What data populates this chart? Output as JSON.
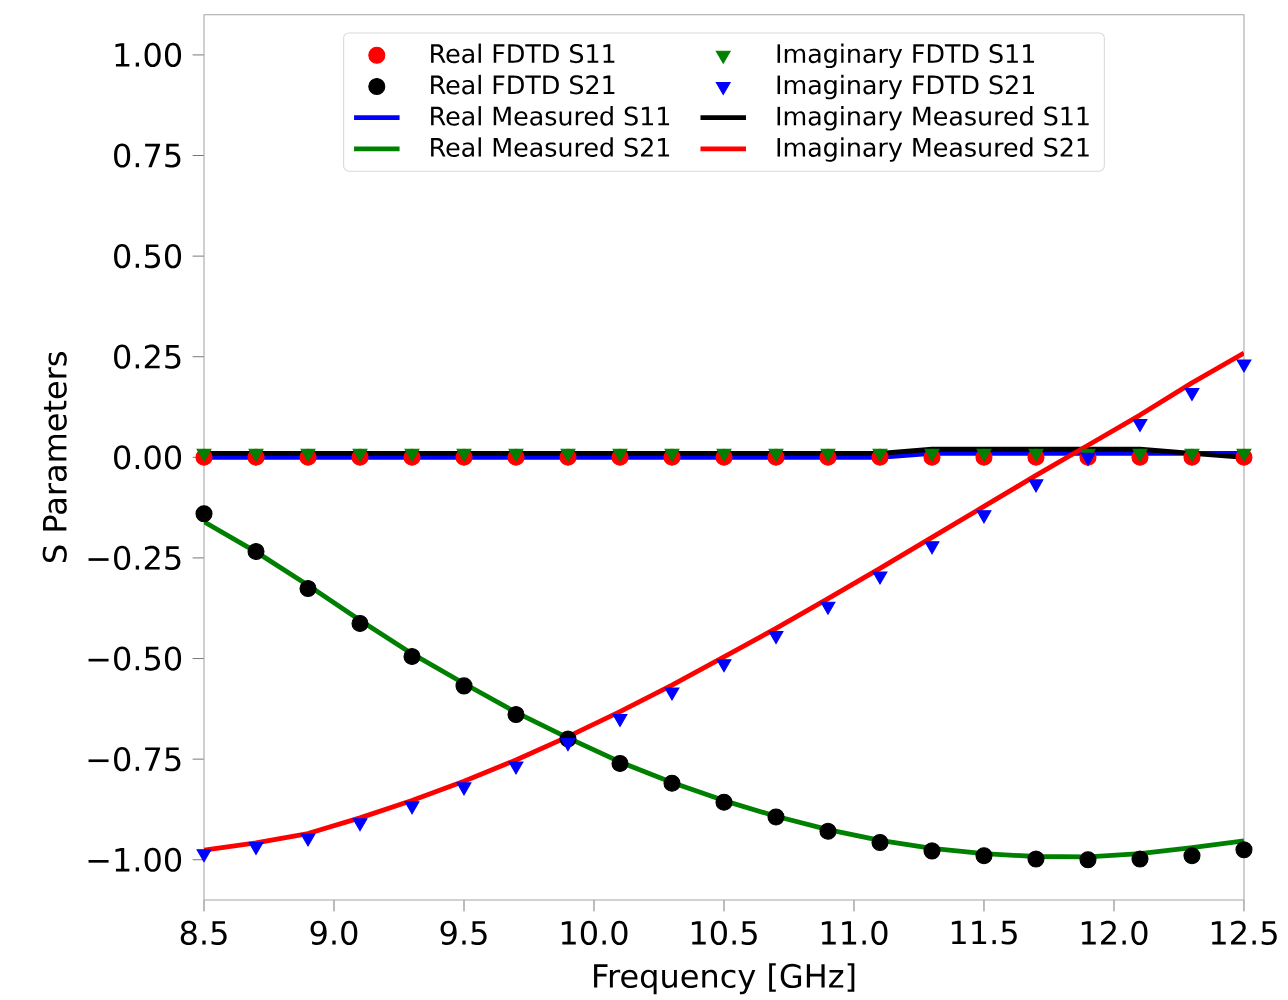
{
  "chart_data": {
    "type": "line",
    "xlabel": "Frequency [GHz]",
    "ylabel": "S Parameters",
    "xlim": [
      8.5,
      12.5
    ],
    "ylim": [
      -1.1,
      1.1
    ],
    "xticks": [
      8.5,
      {
        "value": 9,
        "label": "9.0"
      },
      9.5,
      {
        "value": 10,
        "label": "10.0"
      },
      10.5,
      {
        "value": 11,
        "label": "11.0"
      },
      11.5,
      {
        "value": 12,
        "label": "12.0"
      },
      12.5
    ],
    "yticks": [
      {
        "value": -1,
        "label": "−1.00"
      },
      {
        "value": -0.75,
        "label": "−0.75"
      },
      {
        "value": -0.5,
        "label": "−0.50"
      },
      {
        "value": -0.25,
        "label": "−0.25"
      },
      {
        "value": 0,
        "label": "0.00"
      },
      {
        "value": 0.25,
        "label": "0.25"
      },
      {
        "value": 0.5,
        "label": "0.50"
      },
      {
        "value": 0.75,
        "label": "0.75"
      },
      {
        "value": 1,
        "label": "1.00"
      }
    ],
    "x": [
      8.5,
      8.7,
      8.9,
      9.1,
      9.3,
      9.5,
      9.7,
      9.9,
      10.1,
      10.3,
      10.5,
      10.7,
      10.9,
      11.1,
      11.3,
      11.5,
      11.7,
      11.9,
      12.1,
      12.3,
      12.5
    ],
    "legend": "top",
    "grid": false,
    "series": [
      {
        "name": "Real FDTD S11",
        "type": "scatter",
        "marker": "circle",
        "color": "#ff0000",
        "values": [
          0,
          0,
          0,
          0,
          0,
          0,
          0,
          0,
          0,
          0,
          0,
          0,
          0,
          0,
          0,
          0,
          0,
          0,
          0,
          0,
          0
        ]
      },
      {
        "name": "Imaginary FDTD S11",
        "type": "scatter",
        "marker": "triangle",
        "color": "#008000",
        "values": [
          0.01,
          0.01,
          0.01,
          0.01,
          0.01,
          0.01,
          0.01,
          0.01,
          0.01,
          0.01,
          0.01,
          0.01,
          0.01,
          0.01,
          0.01,
          0.01,
          0.01,
          0.01,
          0.01,
          0.01,
          0.01
        ]
      },
      {
        "name": "Real FDTD S21",
        "type": "scatter",
        "marker": "circle",
        "color": "#000000",
        "values": [
          -0.14,
          -0.234,
          -0.326,
          -0.413,
          -0.495,
          -0.568,
          -0.639,
          -0.7,
          -0.761,
          -0.81,
          -0.857,
          -0.894,
          -0.929,
          -0.957,
          -0.978,
          -0.99,
          -0.998,
          -1.0,
          -0.998,
          -0.99,
          -0.975
        ]
      },
      {
        "name": "Imaginary FDTD S21",
        "type": "scatter",
        "marker": "triangle",
        "color": "#0000ff",
        "values": [
          -0.985,
          -0.967,
          -0.946,
          -0.908,
          -0.866,
          -0.819,
          -0.767,
          -0.709,
          -0.649,
          -0.583,
          -0.513,
          -0.443,
          -0.37,
          -0.295,
          -0.22,
          -0.143,
          -0.066,
          0.0,
          0.084,
          0.161,
          0.232
        ]
      },
      {
        "name": "Real Measured S11",
        "marker": "none",
        "color": "#0000ff",
        "values": [
          0,
          0,
          0,
          0,
          0,
          0,
          0,
          0,
          0,
          0,
          0,
          0,
          0,
          0,
          0.01,
          0.01,
          0.01,
          0.01,
          0.01,
          0.01,
          0.01
        ]
      },
      {
        "name": "Imaginary Measured S11",
        "marker": "none",
        "color": "#000000",
        "values": [
          0.01,
          0.01,
          0.01,
          0.01,
          0.01,
          0.01,
          0.01,
          0.01,
          0.01,
          0.01,
          0.01,
          0.01,
          0.01,
          0.01,
          0.02,
          0.02,
          0.02,
          0.02,
          0.02,
          0.01,
          0
        ]
      },
      {
        "name": "Real Measured S21",
        "marker": "none",
        "color": "#008000",
        "values": [
          -0.16,
          -0.235,
          -0.318,
          -0.405,
          -0.488,
          -0.562,
          -0.634,
          -0.697,
          -0.757,
          -0.808,
          -0.853,
          -0.892,
          -0.925,
          -0.952,
          -0.972,
          -0.985,
          -0.992,
          -0.993,
          -0.985,
          -0.97,
          -0.953
        ]
      },
      {
        "name": "Imaginary Measured S21",
        "marker": "none",
        "color": "#ff0000",
        "values": [
          -0.976,
          -0.958,
          -0.935,
          -0.896,
          -0.853,
          -0.805,
          -0.752,
          -0.694,
          -0.632,
          -0.566,
          -0.496,
          -0.425,
          -0.351,
          -0.276,
          -0.199,
          -0.122,
          -0.045,
          0.03,
          0.105,
          0.185,
          0.259
        ]
      }
    ]
  }
}
